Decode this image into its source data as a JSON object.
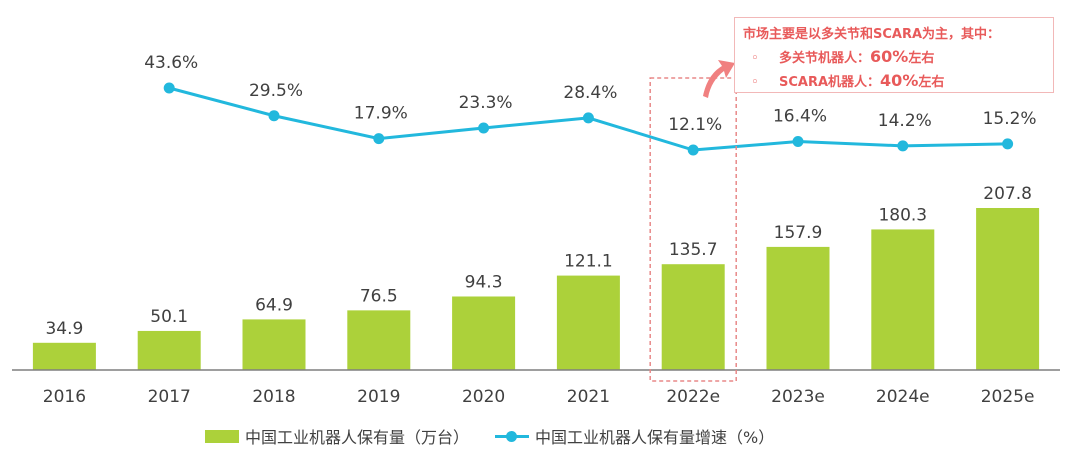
{
  "chart_data": {
    "type": "bar+line",
    "categories": [
      "2016",
      "2017",
      "2018",
      "2019",
      "2020",
      "2021",
      "2022e",
      "2023e",
      "2024e",
      "2025e"
    ],
    "series": [
      {
        "name": "中国工业机器人保有量（万台）",
        "type": "bar",
        "color": "#acd13a",
        "values": [
          34.9,
          50.1,
          64.9,
          76.5,
          94.3,
          121.1,
          135.7,
          157.9,
          180.3,
          207.8
        ],
        "labels": [
          "34.9",
          "50.1",
          "64.9",
          "76.5",
          "94.3",
          "121.1",
          "135.7",
          "157.9",
          "180.3",
          "207.8"
        ]
      },
      {
        "name": "中国工业机器人保有量增速（%）",
        "type": "line",
        "color": "#22b8dd",
        "values": [
          null,
          43.6,
          29.5,
          17.9,
          23.3,
          28.4,
          12.1,
          16.4,
          14.2,
          15.2
        ],
        "labels": [
          "",
          "43.6%",
          "29.5%",
          "17.9%",
          "23.3%",
          "28.4%",
          "12.1%",
          "16.4%",
          "14.2%",
          "15.2%"
        ]
      }
    ],
    "bar_ylim": [
      0,
      240
    ],
    "line_ylim": [
      -50,
      60
    ],
    "highlight_category": "2022e",
    "annotation": {
      "title": "市场主要是以多关节和SCARA为主，其中：",
      "items": [
        {
          "bullet": "◦",
          "label": "多关节机器人：",
          "value": "60%",
          "suffix": "左右"
        },
        {
          "bullet": "◦",
          "label": "SCARA机器人：",
          "value": "40%",
          "suffix": "左右"
        }
      ]
    },
    "legend_position": "bottom-center"
  },
  "colors": {
    "bar": "#acd13a",
    "line": "#22b8dd",
    "highlight": "#e88888",
    "axis": "#7f7f7f",
    "annotation_text": "#e85a5a",
    "arrow": "#f08080"
  }
}
